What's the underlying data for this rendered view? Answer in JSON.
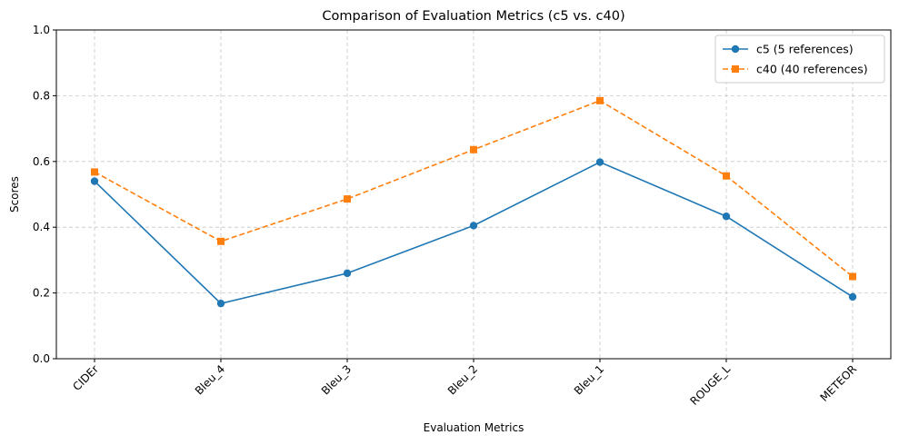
{
  "chart_data": {
    "type": "line",
    "title": "Comparison of Evaluation Metrics (c5 vs. c40)",
    "xlabel": "Evaluation Metrics",
    "ylabel": "Scores",
    "categories": [
      "CIDEr",
      "Bleu_4",
      "Bleu_3",
      "Bleu_2",
      "Bleu_1",
      "ROUGE_L",
      "METEOR"
    ],
    "ylim": [
      0,
      1
    ],
    "yticks": [
      "0.0",
      "0.2",
      "0.4",
      "0.6",
      "0.8",
      "1.0"
    ],
    "grid": true,
    "legend_position": "top-right",
    "series": [
      {
        "name": "c5 (5 references)",
        "values": [
          0.54,
          0.168,
          0.26,
          0.405,
          0.598,
          0.433,
          0.188
        ],
        "color": "#1f77b4",
        "marker": "circle",
        "linestyle": "solid"
      },
      {
        "name": "c40 (40 references)",
        "values": [
          0.568,
          0.357,
          0.486,
          0.636,
          0.785,
          0.556,
          0.25
        ],
        "color": "#ff7f0e",
        "marker": "square",
        "linestyle": "dashed"
      }
    ]
  }
}
